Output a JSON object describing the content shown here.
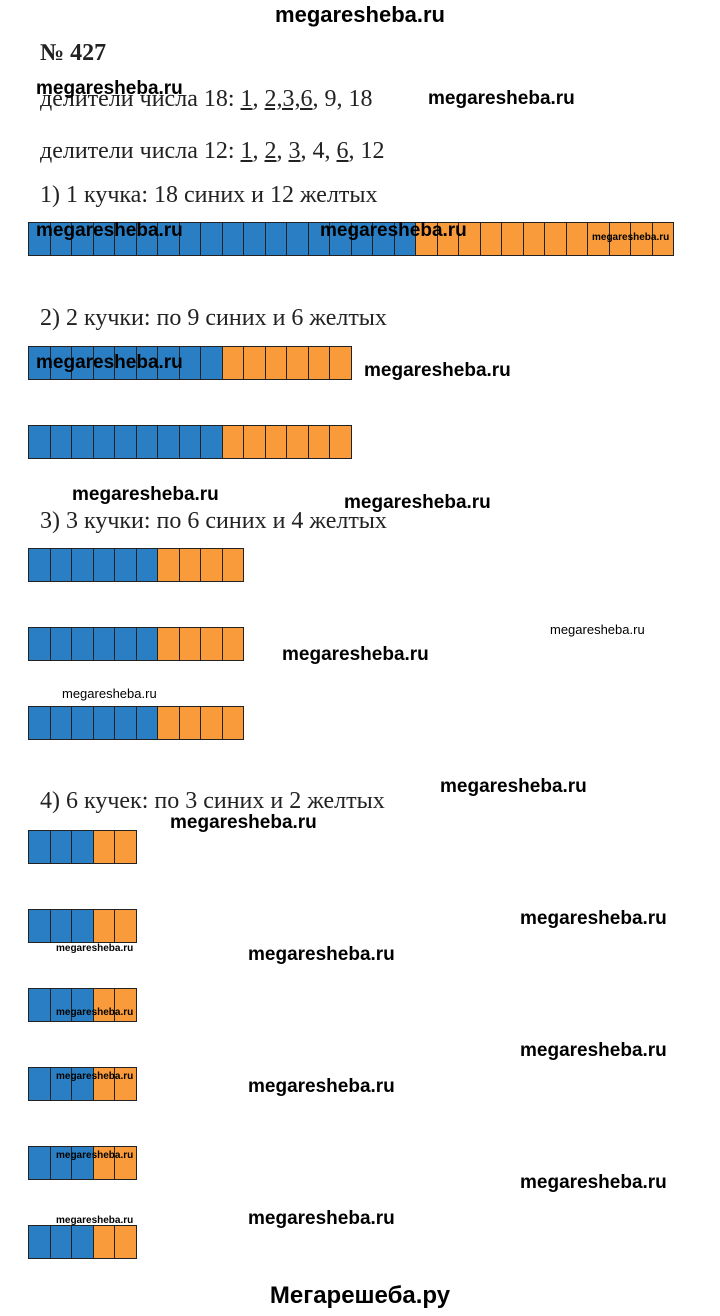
{
  "header_watermark": "megaresheba.ru",
  "footer_watermark": "Мегарешеба.ру",
  "watermark": "megaresheba.ru",
  "problem_number": "№ 427",
  "divisors_18": {
    "label": "делители числа 18: ",
    "items": [
      {
        "text": "1",
        "underlined": true
      },
      {
        "text": ", ",
        "underlined": false
      },
      {
        "text": "2,3,6",
        "underlined": true
      },
      {
        "text": ", 9, 18",
        "underlined": false
      }
    ]
  },
  "divisors_12": {
    "label": "делители числа 12: ",
    "items": [
      {
        "text": "1",
        "underlined": true
      },
      {
        "text": ", ",
        "underlined": false
      },
      {
        "text": "2",
        "underlined": true
      },
      {
        "text": ", ",
        "underlined": false
      },
      {
        "text": "3",
        "underlined": true
      },
      {
        "text": ", 4, ",
        "underlined": false
      },
      {
        "text": "6",
        "underlined": true
      },
      {
        "text": ", 12",
        "underlined": false
      }
    ]
  },
  "colors": {
    "blue": "#2a7fc4",
    "orange": "#f99b3a"
  },
  "sections": [
    {
      "heading": "1) 1 кучка: 18 синих и 12 желтых",
      "piles": 1,
      "blue": 18,
      "orange": 12
    },
    {
      "heading": "2) 2 кучки: по 9 синих и 6 желтых",
      "piles": 2,
      "blue": 9,
      "orange": 6
    },
    {
      "heading": "3) 3 кучки: по 6 синих и 4 желтых",
      "piles": 3,
      "blue": 6,
      "orange": 4
    },
    {
      "heading": "4) 6 кучек: по 3 синих и 2 желтых",
      "piles": 6,
      "blue": 3,
      "orange": 2
    }
  ]
}
